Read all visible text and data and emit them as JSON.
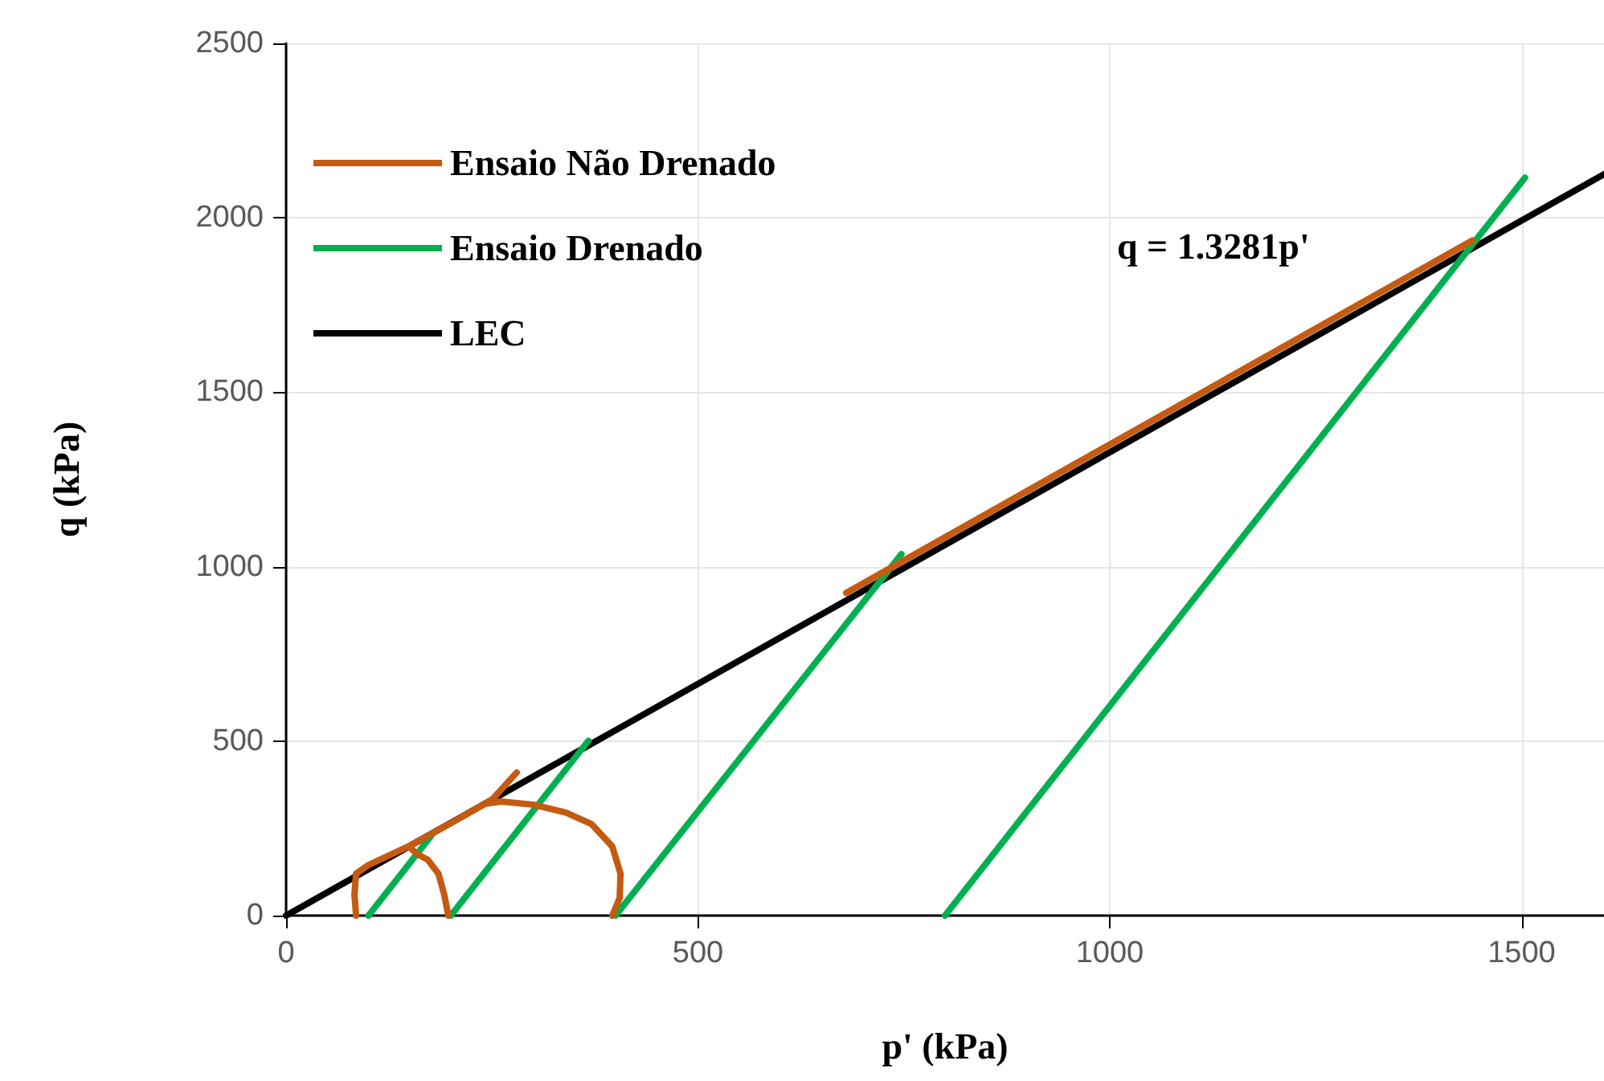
{
  "chart_data": {
    "type": "line",
    "xlabel": "p' (kPa)",
    "ylabel": "q (kPa)",
    "annotations": [
      "q = 1.3281p'"
    ],
    "xlim": [
      0,
      1600
    ],
    "xticks": [
      0,
      500,
      1000,
      1500
    ],
    "ylim": [
      0,
      2500
    ],
    "yticks": [
      0,
      500,
      1000,
      1500,
      2000,
      2500
    ],
    "grid": true,
    "legend": "top left",
    "marker": "none",
    "line_style": "solid",
    "series": [
      {
        "name": "Ensaio Não Drenado",
        "color": "#c55a11",
        "x": [
          85,
          83,
          85,
          100,
          150,
          200,
          250,
          280,
          null,
          197,
          192,
          185,
          172,
          160,
          150,
          null,
          396,
          405,
          406,
          396,
          371,
          340,
          300,
          261,
          240,
          null,
          680,
          1440
        ],
        "values": [
          0,
          60,
          120,
          145,
          200,
          265,
          332,
          410,
          null,
          0,
          60,
          120,
          160,
          175,
          195,
          null,
          0,
          50,
          120,
          198,
          262,
          295,
          318,
          327,
          320,
          null,
          925,
          1935
        ]
      },
      {
        "name": "Ensaio Drenado",
        "color": "#00b050",
        "x": [
          100,
          178,
          null,
          200,
          367,
          null,
          400,
          747,
          null,
          800,
          1504
        ],
        "values": [
          0,
          234,
          null,
          0,
          501,
          null,
          0,
          1036,
          null,
          0,
          2115
        ]
      },
      {
        "name": "LEC",
        "color": "#000000",
        "x": [
          0,
          1600
        ],
        "values": [
          0,
          2125
        ]
      }
    ]
  }
}
